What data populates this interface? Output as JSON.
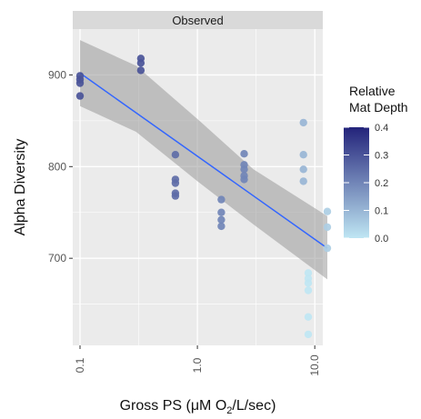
{
  "chart_data": {
    "type": "scatter",
    "facet_label": "Observed",
    "xlabel_prefix": "Gross PS (μM O",
    "xlabel_subscript": "2",
    "xlabel_suffix": "/L/sec)",
    "ylabel": "Alpha Diversity",
    "x_scale": "log10",
    "xlim": [
      0.1,
      13.5
    ],
    "ylim": [
      605,
      950
    ],
    "x_ticks": [
      0.1,
      1.0,
      10.0
    ],
    "x_tick_labels": [
      "0.1",
      "1.0",
      "10.0"
    ],
    "y_ticks": [
      700,
      800,
      900
    ],
    "y_tick_labels": [
      "700",
      "800",
      "900"
    ],
    "grid": true,
    "legend": {
      "title_line1": "Relative",
      "title_line2": "Mat Depth",
      "position": "right",
      "ticks": [
        0.4,
        0.3,
        0.2,
        0.1,
        0.0
      ],
      "tick_labels": [
        "0.4",
        "0.3",
        "0.2",
        "0.1",
        "0.0"
      ],
      "range": [
        0.0,
        0.4
      ],
      "low_color": "#bfe6f3",
      "high_color": "#23237a"
    },
    "points": [
      {
        "x": 0.1,
        "y": 899,
        "depth": 0.3
      },
      {
        "x": 0.1,
        "y": 895,
        "depth": 0.3
      },
      {
        "x": 0.1,
        "y": 891,
        "depth": 0.3
      },
      {
        "x": 0.1,
        "y": 877,
        "depth": 0.3
      },
      {
        "x": 0.33,
        "y": 918,
        "depth": 0.3
      },
      {
        "x": 0.33,
        "y": 913,
        "depth": 0.3
      },
      {
        "x": 0.33,
        "y": 905,
        "depth": 0.3
      },
      {
        "x": 0.65,
        "y": 813,
        "depth": 0.25
      },
      {
        "x": 0.65,
        "y": 786,
        "depth": 0.25
      },
      {
        "x": 0.65,
        "y": 782,
        "depth": 0.25
      },
      {
        "x": 0.65,
        "y": 771,
        "depth": 0.25
      },
      {
        "x": 0.65,
        "y": 768,
        "depth": 0.25
      },
      {
        "x": 1.6,
        "y": 764,
        "depth": 0.2
      },
      {
        "x": 1.6,
        "y": 750,
        "depth": 0.2
      },
      {
        "x": 1.6,
        "y": 742,
        "depth": 0.2
      },
      {
        "x": 1.6,
        "y": 735,
        "depth": 0.2
      },
      {
        "x": 2.5,
        "y": 814,
        "depth": 0.2
      },
      {
        "x": 2.5,
        "y": 802,
        "depth": 0.2
      },
      {
        "x": 2.5,
        "y": 797,
        "depth": 0.2
      },
      {
        "x": 2.5,
        "y": 790,
        "depth": 0.2
      },
      {
        "x": 2.5,
        "y": 786,
        "depth": 0.2
      },
      {
        "x": 8.0,
        "y": 848,
        "depth": 0.1
      },
      {
        "x": 8.0,
        "y": 813,
        "depth": 0.1
      },
      {
        "x": 8.0,
        "y": 797,
        "depth": 0.1
      },
      {
        "x": 8.0,
        "y": 784,
        "depth": 0.1
      },
      {
        "x": 8.8,
        "y": 684,
        "depth": 0.0
      },
      {
        "x": 8.8,
        "y": 678,
        "depth": 0.0
      },
      {
        "x": 8.8,
        "y": 673,
        "depth": 0.0
      },
      {
        "x": 8.8,
        "y": 665,
        "depth": 0.0
      },
      {
        "x": 8.8,
        "y": 636,
        "depth": 0.0
      },
      {
        "x": 8.8,
        "y": 617,
        "depth": 0.0
      },
      {
        "x": 12.8,
        "y": 751,
        "depth": 0.05
      },
      {
        "x": 12.8,
        "y": 734,
        "depth": 0.05
      },
      {
        "x": 12.8,
        "y": 711,
        "depth": 0.05
      }
    ],
    "fit_line": {
      "x": [
        0.1,
        12.8
      ],
      "y": [
        902,
        711
      ],
      "color": "#3366ff"
    },
    "confidence_band": {
      "x": [
        0.1,
        0.3,
        1.0,
        3.0,
        12.8
      ],
      "lower": [
        866,
        838,
        784,
        737,
        677
      ],
      "upper": [
        938,
        910,
        852,
        797,
        746
      ],
      "color": "#999999"
    },
    "colors": {
      "panel_background": "#ebebeb",
      "grid": "#ffffff",
      "strip_background": "#d9d9d9"
    }
  }
}
